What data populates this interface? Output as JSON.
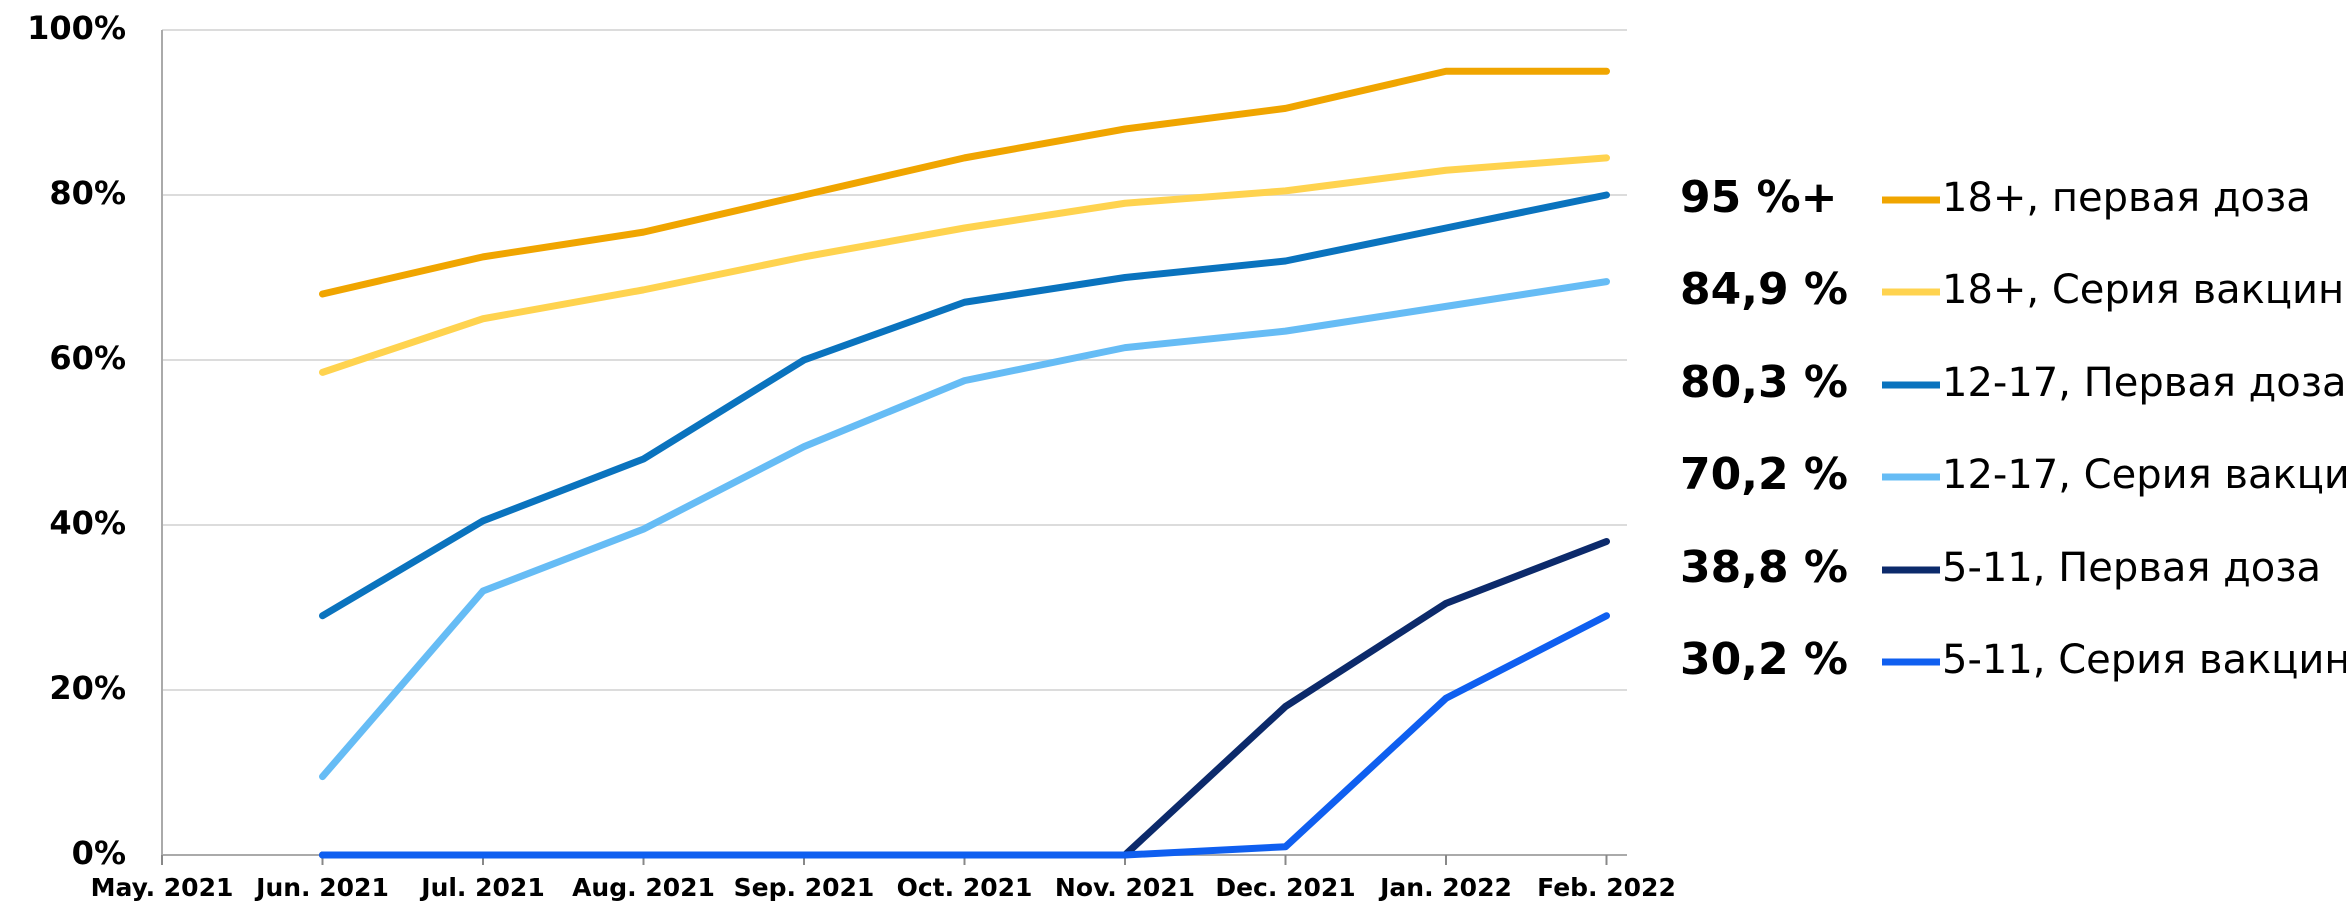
{
  "chart_data": {
    "type": "line",
    "categories": [
      "May. 2021",
      "Jun. 2021",
      "Jul. 2021",
      "Aug. 2021",
      "Sep. 2021",
      "Oct. 2021",
      "Nov. 2021",
      "Dec. 2021",
      "Jan. 2022",
      "Feb. 2022"
    ],
    "ylim": [
      0,
      100
    ],
    "yticks": [
      {
        "value": 0,
        "label": "0%"
      },
      {
        "value": 20,
        "label": "20%"
      },
      {
        "value": 40,
        "label": "40%"
      },
      {
        "value": 60,
        "label": "60%"
      },
      {
        "value": 80,
        "label": "80%"
      },
      {
        "value": 100,
        "label": "100%"
      }
    ],
    "grid": true,
    "series": [
      {
        "name": "18+, первая доза",
        "annotation": "95 %+",
        "color": "#f0a500",
        "values": [
          null,
          68,
          72.5,
          75.5,
          80,
          84.5,
          88,
          90.5,
          95,
          95
        ]
      },
      {
        "name": "18+, Серия вакцин",
        "annotation": "84,9 %",
        "color": "#ffd34f",
        "values": [
          null,
          58.5,
          65,
          68.5,
          72.5,
          76,
          79,
          80.5,
          83,
          84.5
        ]
      },
      {
        "name": "12-17, Первая доза",
        "annotation": "80,3 %",
        "color": "#0a73be",
        "values": [
          null,
          29,
          40.5,
          48,
          60,
          67,
          70,
          72,
          76,
          80
        ]
      },
      {
        "name": "12-17, Серия вакцин",
        "annotation": "70,2 %",
        "color": "#66bcf5",
        "values": [
          null,
          9.5,
          32,
          39.5,
          49.5,
          57.5,
          61.5,
          63.5,
          66.5,
          69.5
        ]
      },
      {
        "name": "5-11, Первая доза",
        "annotation": "38,8 %",
        "color": "#0c2a6b",
        "values": [
          null,
          0,
          0,
          0,
          0,
          0,
          0,
          18,
          30.5,
          38
        ]
      },
      {
        "name": "5-11, Серия вакцин",
        "annotation": "30,2 %",
        "color": "#0f5ff0",
        "values": [
          null,
          0,
          0,
          0,
          0,
          0,
          0,
          1,
          19,
          29
        ]
      }
    ]
  }
}
